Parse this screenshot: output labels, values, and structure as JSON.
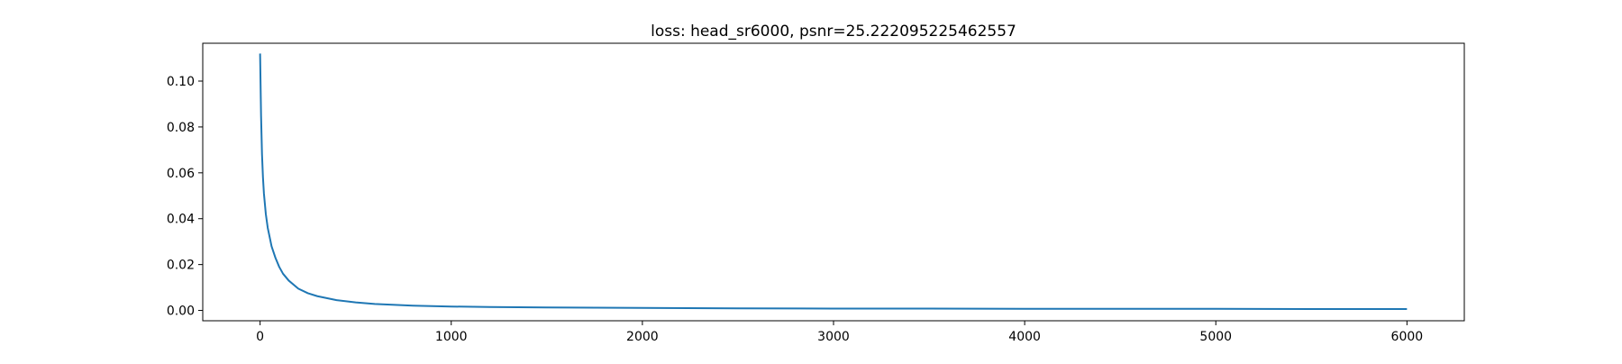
{
  "chart_data": {
    "type": "line",
    "title": "loss: head_sr6000, psnr=25.222095225462557",
    "xlabel": "",
    "ylabel": "",
    "xlim": [
      -300,
      6300
    ],
    "ylim": [
      -0.0045,
      0.1165
    ],
    "grid": false,
    "legend": "none",
    "xticks": [
      0,
      1000,
      2000,
      3000,
      4000,
      5000,
      6000
    ],
    "xtick_labels": [
      "0",
      "1000",
      "2000",
      "3000",
      "4000",
      "5000",
      "6000"
    ],
    "yticks": [
      0.0,
      0.02,
      0.04,
      0.06,
      0.08,
      0.1
    ],
    "ytick_labels": [
      "0.00",
      "0.02",
      "0.04",
      "0.06",
      "0.08",
      "0.10"
    ],
    "series": [
      {
        "color": "#1f77b4",
        "x": [
          0,
          5,
          10,
          15,
          20,
          30,
          40,
          50,
          60,
          80,
          100,
          120,
          150,
          200,
          250,
          300,
          400,
          500,
          600,
          800,
          1000,
          1200,
          1500,
          2000,
          2500,
          3000,
          3500,
          4000,
          4500,
          5000,
          5500,
          6000
        ],
        "y": [
          0.112,
          0.085,
          0.068,
          0.058,
          0.051,
          0.042,
          0.036,
          0.032,
          0.028,
          0.023,
          0.019,
          0.016,
          0.013,
          0.0095,
          0.0075,
          0.0062,
          0.0045,
          0.0035,
          0.0028,
          0.0021,
          0.0017,
          0.0015,
          0.0013,
          0.0011,
          0.0009,
          0.0008,
          0.0008,
          0.0007,
          0.0007,
          0.0007,
          0.0006,
          0.0006
        ]
      }
    ]
  }
}
